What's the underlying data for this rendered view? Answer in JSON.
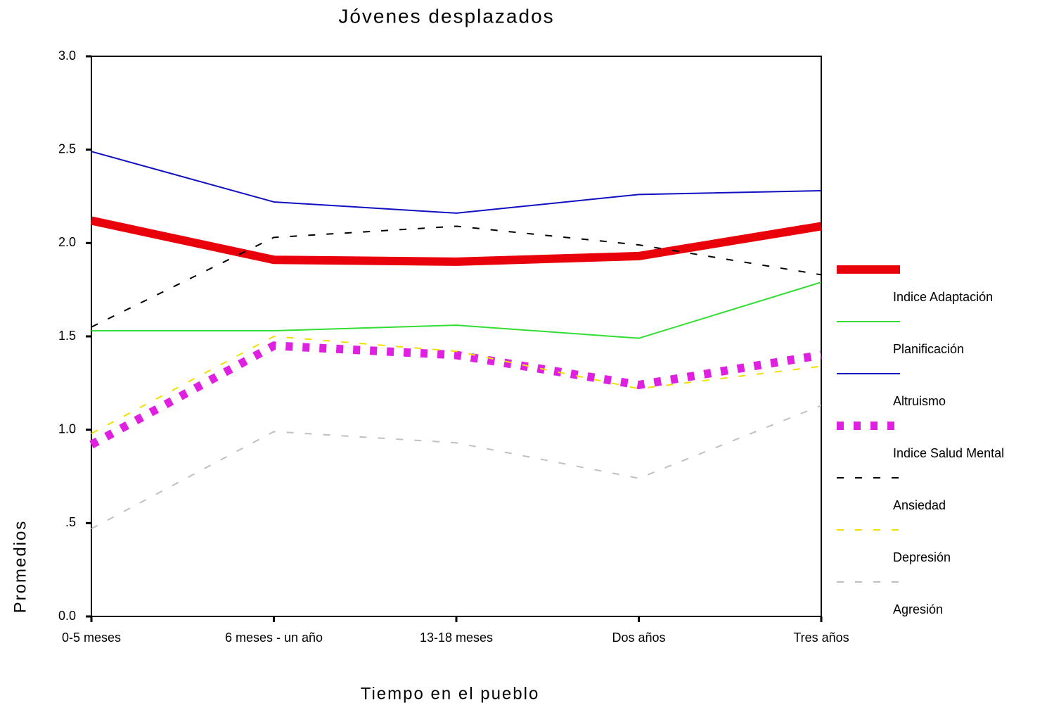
{
  "chart_data": {
    "type": "line",
    "title": "Jóvenes desplazados",
    "x_label": "Tiempo en el pueblo",
    "y_label": "Promedios",
    "categories": [
      "0-5 meses",
      "6 meses - un año",
      "13-18 meses",
      "Dos años",
      "Tres años"
    ],
    "ylim": [
      0,
      3
    ],
    "yticks": [
      {
        "value": 0,
        "label": "0.0"
      },
      {
        "value": 0.5,
        "label": ".5"
      },
      {
        "value": 1,
        "label": "1.0"
      },
      1.5,
      {
        "value": 2,
        "label": "2.0"
      },
      2.5,
      {
        "value": 3,
        "label": "3.0"
      }
    ],
    "legend": "right",
    "series": [
      {
        "name": "Indice Adaptación",
        "color": "#e8000b",
        "style": "thick",
        "values": [
          2.12,
          1.91,
          1.9,
          1.93,
          2.09
        ]
      },
      {
        "name": "Planificación",
        "color": "#33dd33",
        "style": "solid",
        "values": [
          1.53,
          1.53,
          1.56,
          1.49,
          1.79
        ]
      },
      {
        "name": "Altruismo",
        "color": "#1010c0",
        "style": "solid",
        "values": [
          2.49,
          2.22,
          2.16,
          2.26,
          2.28
        ]
      },
      {
        "name": "Indice Salud Mental",
        "color": "#e020e0",
        "style": "thick-dotted",
        "values": [
          0.92,
          1.45,
          1.4,
          1.24,
          1.4
        ]
      },
      {
        "name": "Ansiedad",
        "color": "#000000",
        "style": "dashed",
        "values": [
          1.55,
          2.03,
          2.09,
          1.99,
          1.83
        ]
      },
      {
        "name": "Depresión",
        "color": "#f0e000",
        "style": "dashed",
        "values": [
          0.98,
          1.5,
          1.42,
          1.22,
          1.34
        ]
      },
      {
        "name": "Agresión",
        "color": "#c0c0c0",
        "style": "dashed",
        "values": [
          0.47,
          0.99,
          0.93,
          0.74,
          1.13
        ]
      }
    ]
  }
}
